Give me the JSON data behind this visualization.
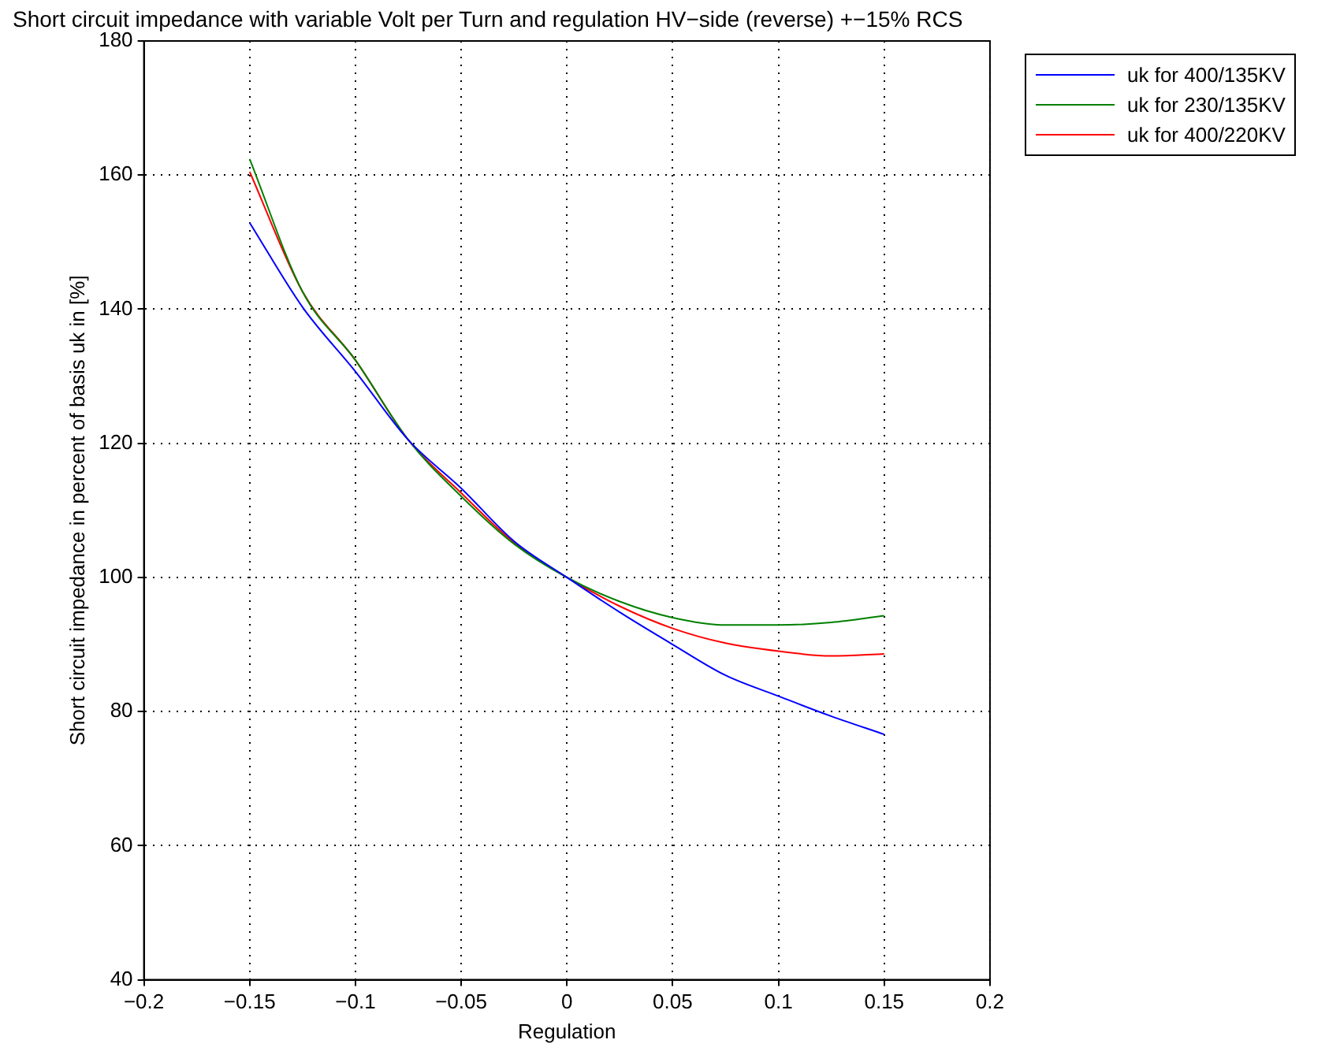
{
  "chart_data": {
    "type": "line",
    "title": "Short circuit impedance with variable Volt per Turn and regulation HV−side (reverse) +−15% RCS",
    "xlabel": "Regulation",
    "ylabel": "Short circuit impedance in percent of basis uk in [%]",
    "x": [
      -0.15,
      -0.125,
      -0.1,
      -0.075,
      -0.05,
      -0.025,
      0,
      0.025,
      0.05,
      0.075,
      0.1,
      0.125,
      0.15
    ],
    "series": [
      {
        "name": "uk for 400/135KV",
        "color": "#0000ff",
        "values": [
          152.9,
          140.3,
          130.7,
          120.5,
          113.3,
          105.4,
          100,
          94.8,
          90.0,
          85.4,
          82.3,
          79.3,
          76.6
        ]
      },
      {
        "name": "uk for 230/135KV",
        "color": "#008000",
        "values": [
          162.4,
          142.6,
          132.4,
          120.5,
          112.1,
          105.0,
          100,
          96.4,
          94.0,
          92.9,
          92.9,
          93.3,
          94.3
        ]
      },
      {
        "name": "uk for 400/220KV",
        "color": "#ff0000",
        "values": [
          160.5,
          142.6,
          132.4,
          120.5,
          112.6,
          105.2,
          100,
          95.7,
          92.4,
          90.2,
          89.0,
          88.3,
          88.6
        ]
      }
    ],
    "xlim": [
      -0.2,
      0.2
    ],
    "xticks": [
      -0.2,
      -0.15,
      -0.1,
      -0.05,
      0,
      0.05,
      0.1,
      0.15,
      0.2
    ],
    "ylim": [
      40,
      180
    ],
    "yticks": [
      40,
      60,
      80,
      100,
      120,
      140,
      160,
      180
    ],
    "grid": true,
    "legend": "top right",
    "marker": "none",
    "line_style": "solid"
  }
}
